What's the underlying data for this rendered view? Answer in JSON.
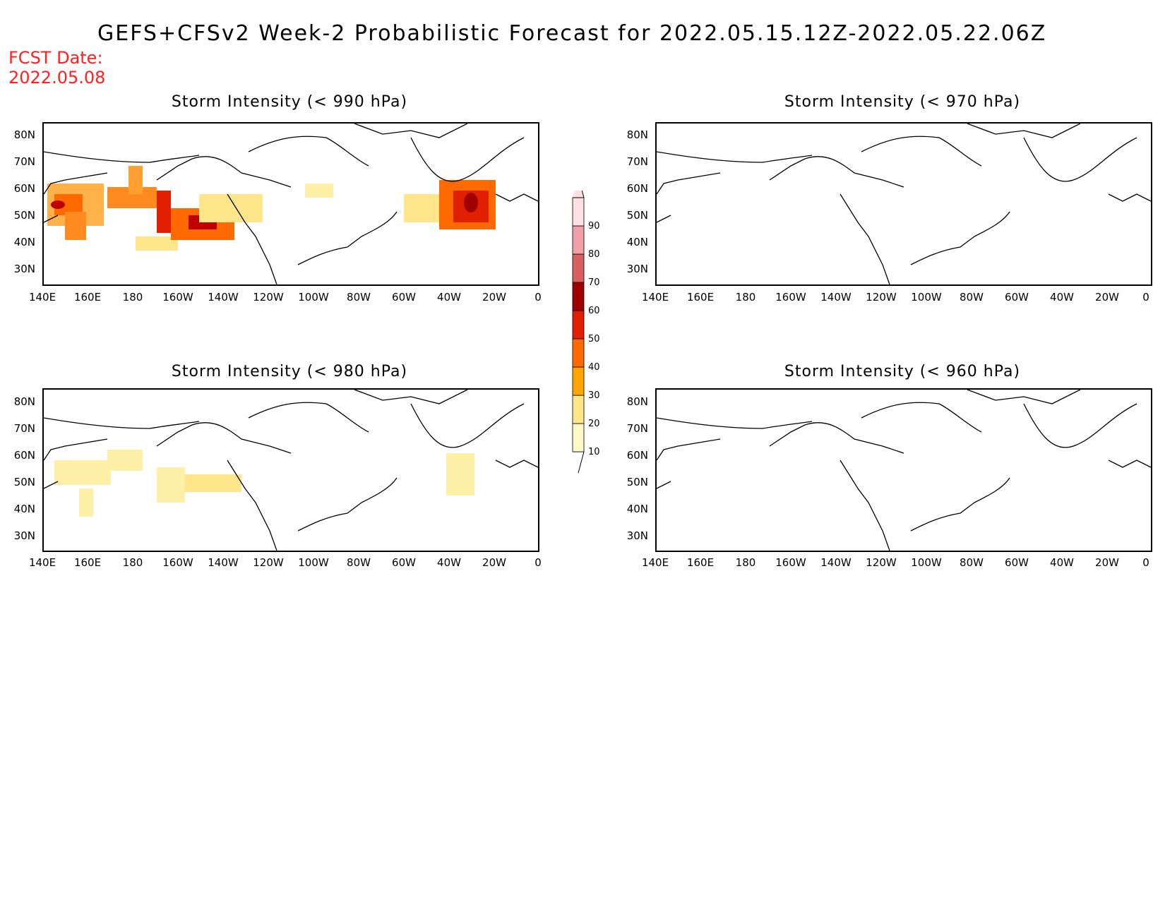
{
  "title": "GEFS+CFSv2 Week-2 Probabilistic Forecast for 2022.05.15.12Z-2022.05.22.06Z",
  "fcst_date": {
    "line1": "FCST Date:",
    "line2": "2022.05.08"
  },
  "panels": [
    {
      "title": "Storm Intensity (< 990 hPa)"
    },
    {
      "title": "Storm Intensity (< 970 hPa)"
    },
    {
      "title": "Storm Intensity (< 980 hPa)"
    },
    {
      "title": "Storm Intensity (< 960 hPa)"
    }
  ],
  "axes": {
    "lat_labels": [
      "80N",
      "70N",
      "60N",
      "50N",
      "40N",
      "30N"
    ],
    "lon_labels": [
      "140E",
      "160E",
      "180",
      "160W",
      "140W",
      "120W",
      "100W",
      "80W",
      "60W",
      "40W",
      "20W",
      "0"
    ]
  },
  "colorbar": {
    "levels": [
      "10",
      "20",
      "30",
      "40",
      "50",
      "60",
      "70",
      "80",
      "90"
    ],
    "colors": [
      "#fff8c8",
      "#ffe68a",
      "#ffa500",
      "#ff6a00",
      "#e02000",
      "#a00000",
      "#d86060",
      "#f0a0a8",
      "#fde0e4"
    ]
  }
}
